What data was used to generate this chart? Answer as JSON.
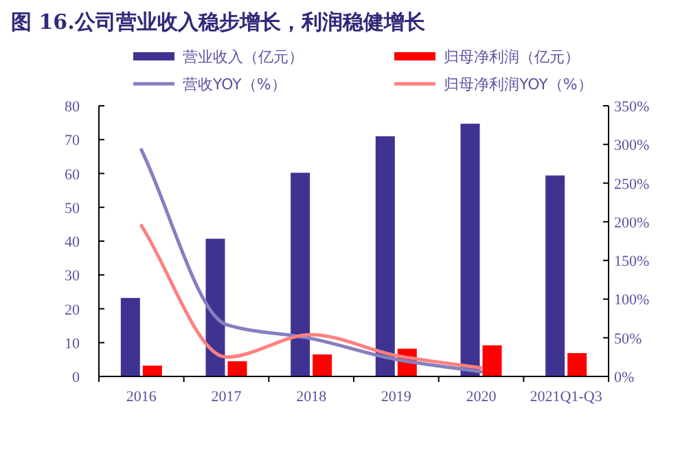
{
  "chart_data": {
    "type": "bar",
    "title": "图 16.公司营业收入稳步增长，利润稳健增长",
    "categories": [
      "2016",
      "2017",
      "2018",
      "2019",
      "2020",
      "2021Q1-Q3"
    ],
    "series": [
      {
        "name": "营业收入（亿元）",
        "color": "#3f3392",
        "values": [
          23.2,
          40.7,
          60.2,
          71.0,
          74.7,
          59.4
        ]
      },
      {
        "name": "归母净利润（亿元）",
        "color": "#ff0000",
        "values": [
          3.2,
          4.5,
          6.5,
          8.2,
          9.2,
          6.9
        ]
      },
      {
        "name": "营收YOY（%）",
        "type": "line",
        "axis": "y2",
        "color": "#8580c0",
        "values": [
          293,
          67,
          49,
          22,
          6,
          null
        ]
      },
      {
        "name": "归母净利润YOY（%）",
        "type": "line",
        "axis": "y2",
        "color": "#ff8080",
        "values": [
          195,
          25,
          54,
          27,
          11,
          null
        ]
      }
    ],
    "ylim": [
      0,
      80
    ],
    "yticks": [
      0,
      10,
      20,
      30,
      40,
      50,
      60,
      70,
      80
    ],
    "y2lim": [
      0,
      350
    ],
    "y2ticks": [
      {
        "value": 0,
        "label": "0%"
      },
      {
        "value": 50,
        "label": "50%"
      },
      {
        "value": 100,
        "label": "100%"
      },
      {
        "value": 150,
        "label": "150%"
      },
      {
        "value": 200,
        "label": "200%"
      },
      {
        "value": 250,
        "label": "250%"
      },
      {
        "value": 300,
        "label": "300%"
      },
      {
        "value": 350,
        "label": "350%"
      }
    ],
    "legend": "top",
    "grid": false
  }
}
